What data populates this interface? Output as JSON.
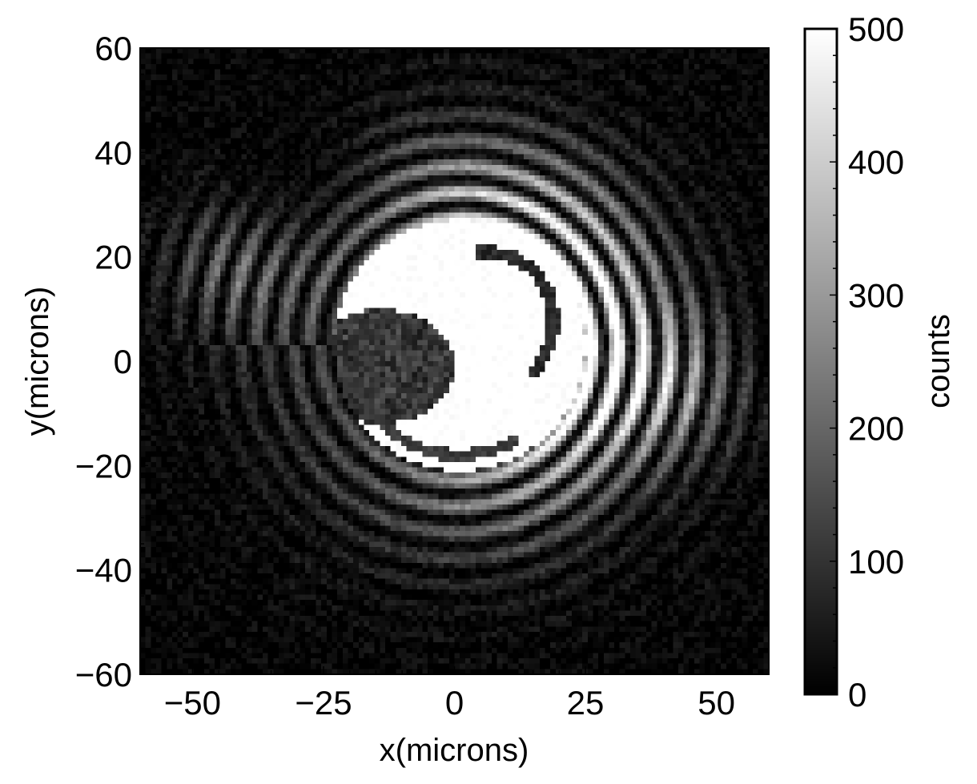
{
  "chart_data": {
    "type": "heatmap",
    "title": "",
    "xlabel": "x(microns)",
    "ylabel": "y(microns)",
    "xlim": [
      -60,
      60
    ],
    "ylim": [
      -60,
      60
    ],
    "x_ticks": [
      -50,
      -25,
      0,
      25,
      50
    ],
    "x_tick_labels": [
      "−50",
      "−25",
      "0",
      "25",
      "50"
    ],
    "y_ticks": [
      -60,
      -40,
      -20,
      0,
      20,
      40,
      60
    ],
    "y_tick_labels": [
      "−60",
      "−40",
      "−20",
      "0",
      "20",
      "40",
      "60"
    ],
    "colormap": "grayscale",
    "colorbar": {
      "label": "counts",
      "range": [
        0,
        500
      ],
      "ticks": [
        0,
        100,
        200,
        300,
        400,
        500
      ],
      "tick_labels": [
        "0",
        "100",
        "200",
        "300",
        "400",
        "500"
      ]
    },
    "description_of_field": "bright saturated ring (~500 counts) centred near (0, 5) microns with radius ~25 microns, dark notch on the left side of the ring near (-15, 0), concentric fringes of decreasing intensity extending outward, dark corners"
  }
}
